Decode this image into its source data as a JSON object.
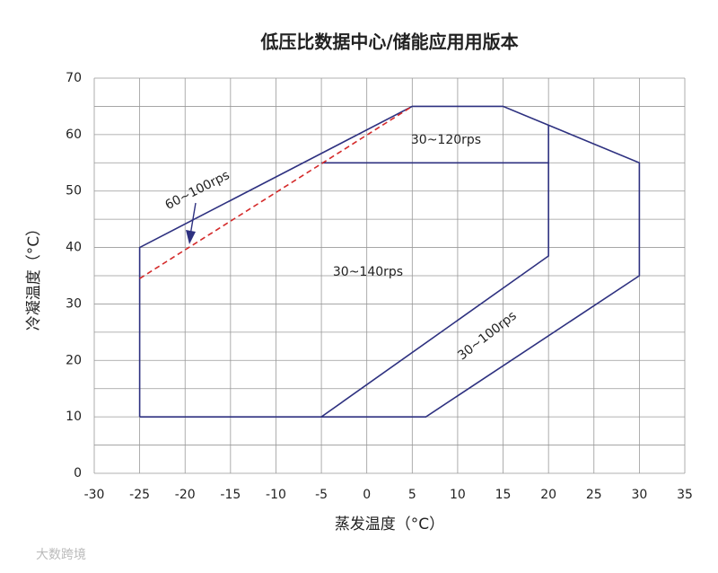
{
  "chart_data": {
    "type": "line",
    "title": "低压比数据中心/储能应用用版本",
    "x_label": "蒸发温度（°C）",
    "y_label": "冷凝温度（°C）",
    "xlim": [
      -30,
      35
    ],
    "ylim": [
      0,
      70
    ],
    "xticks": [
      -30,
      -25,
      -20,
      -15,
      -10,
      -5,
      0,
      5,
      10,
      15,
      20,
      25,
      30,
      35
    ],
    "yticks": [
      0,
      10,
      20,
      30,
      40,
      50,
      60,
      70
    ],
    "yminor_grid": [
      5,
      15,
      25,
      35,
      45,
      55,
      65
    ],
    "grid": true,
    "series": [
      {
        "color": "#2e3180",
        "dash": false,
        "x": [
          -25,
          -25,
          5,
          15,
          30,
          30,
          6.5,
          -25
        ],
        "values": [
          10,
          40,
          65,
          65,
          55,
          35,
          10,
          10
        ]
      },
      {
        "color": "#2e3180",
        "dash": false,
        "x": [
          -5,
          20,
          20
        ],
        "values": [
          10,
          38.5,
          61.7
        ]
      },
      {
        "color": "#2e3180",
        "dash": false,
        "x": [
          -5,
          20
        ],
        "values": [
          55,
          55
        ]
      },
      {
        "color": "#d42a2a",
        "dash": true,
        "x": [
          -25,
          5
        ],
        "values": [
          34.5,
          65
        ]
      }
    ],
    "annotations": [
      "30~120rps",
      "30~140rps",
      "30~100rps",
      "60~100rps"
    ],
    "watermark": "大数跨境"
  }
}
